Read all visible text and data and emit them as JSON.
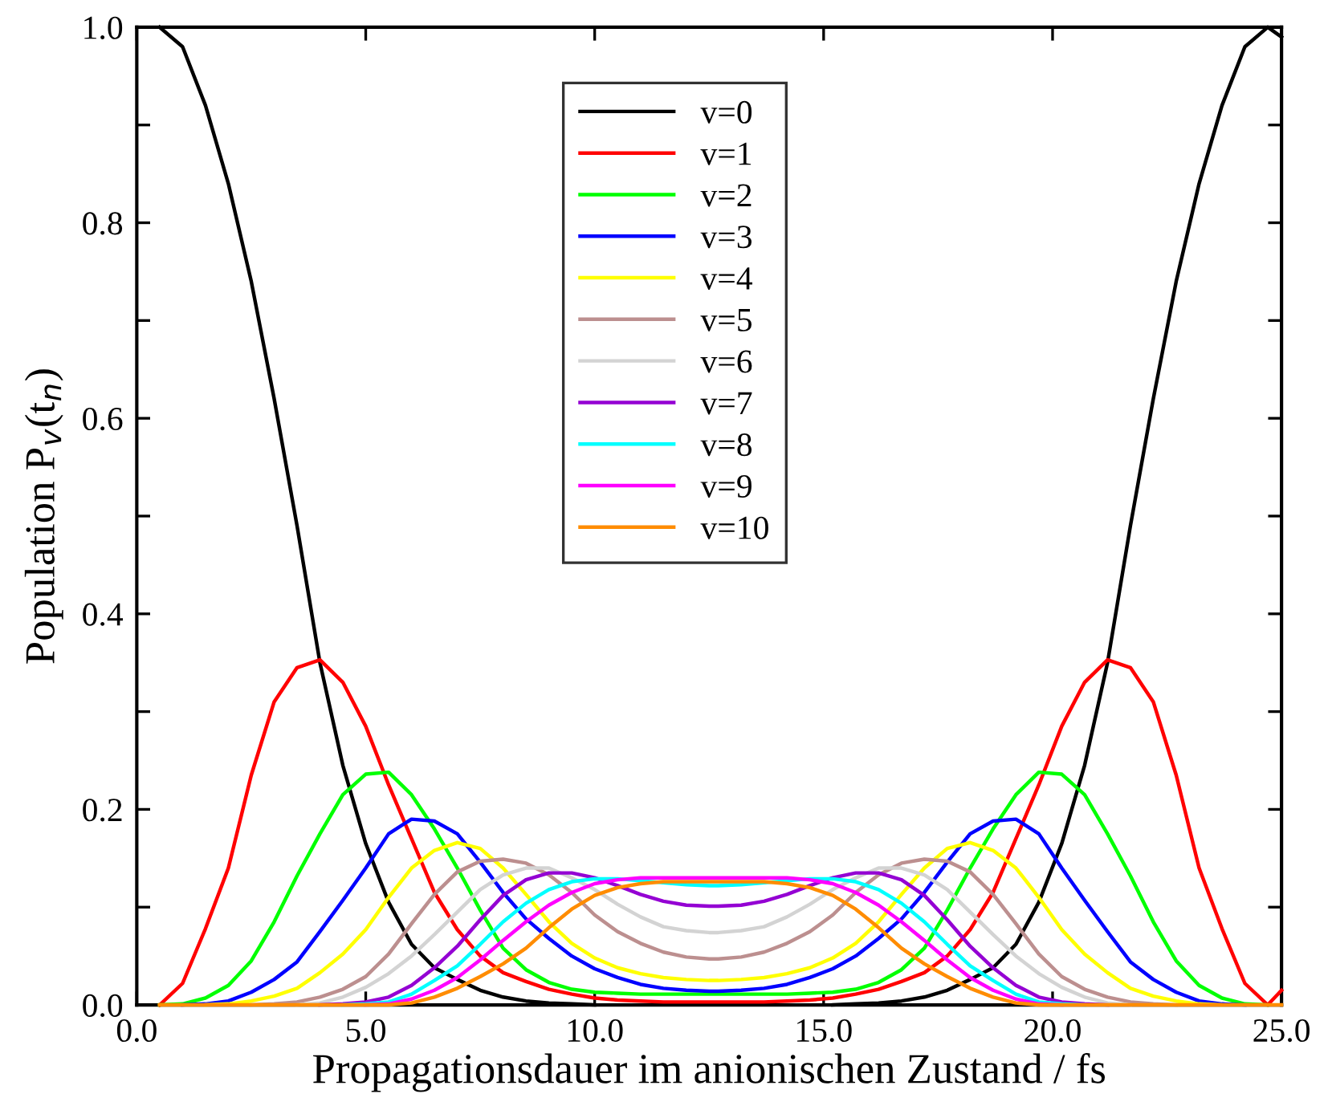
{
  "chart_data": {
    "type": "line",
    "xlabel": "Propagationsdauer im anionischen Zustand / fs",
    "ylabel": "Population P$_{v}$(t$_{n}$)",
    "x": [
      0.5,
      1.0,
      1.5,
      2.0,
      2.5,
      3.0,
      3.5,
      4.0,
      4.5,
      5.0,
      5.5,
      6.0,
      6.5,
      7.0,
      7.5,
      8.0,
      8.5,
      9.0,
      9.5,
      10.0,
      10.5,
      11.0,
      11.5,
      12.0,
      12.5,
      12.7,
      13.2,
      13.7,
      14.2,
      14.7,
      15.2,
      15.7,
      16.2,
      16.7,
      17.2,
      17.7,
      18.2,
      18.7,
      19.2,
      19.7,
      20.2,
      20.7,
      21.2,
      21.7,
      22.2,
      22.7,
      23.2,
      23.7,
      24.2,
      24.7,
      25.0
    ],
    "xlim": [
      0,
      25.0
    ],
    "xticks": [
      {
        "value": 0,
        "label": "0.0"
      },
      {
        "value": 5,
        "label": "5.0"
      },
      {
        "value": 10,
        "label": "10.0"
      },
      {
        "value": 15,
        "label": "15.0"
      },
      {
        "value": 20,
        "label": "20.0"
      },
      {
        "value": 25,
        "label": "25.0"
      }
    ],
    "ylim": [
      0,
      1.0
    ],
    "yticks": [
      {
        "value": 0,
        "label": "0.0"
      },
      {
        "value": 0.1,
        "label": null
      },
      {
        "value": 0.2,
        "label": "0.2"
      },
      {
        "value": 0.3,
        "label": null
      },
      {
        "value": 0.4,
        "label": "0.4"
      },
      {
        "value": 0.5,
        "label": null
      },
      {
        "value": 0.6,
        "label": "0.6"
      },
      {
        "value": 0.7,
        "label": null
      },
      {
        "value": 0.8,
        "label": "0.8"
      },
      {
        "value": 0.9,
        "label": null
      },
      {
        "value": 1.0,
        "label": "1.0"
      }
    ],
    "legend": "top",
    "grid": false,
    "marker": "none",
    "line_style": "solid",
    "series": [
      {
        "name": "v=0",
        "color": "#000000",
        "values": [
          1.0,
          0.98,
          0.92,
          0.84,
          0.74,
          0.62,
          0.49,
          0.35,
          0.245,
          0.165,
          0.105,
          0.062,
          0.038,
          0.026,
          0.015,
          0.008,
          0.004,
          0.002,
          0.001,
          0,
          null,
          null,
          null,
          null,
          null,
          null,
          null,
          null,
          null,
          null,
          0,
          0.001,
          0.002,
          0.004,
          0.008,
          0.015,
          0.026,
          0.038,
          0.062,
          0.105,
          0.165,
          0.245,
          0.35,
          0.49,
          0.62,
          0.74,
          0.84,
          0.92,
          0.98,
          1.0,
          0.99
        ]
      },
      {
        "name": "v=1",
        "color": "#ff0000",
        "values": [
          0,
          0.022,
          0.078,
          0.14,
          0.235,
          0.31,
          0.345,
          0.353,
          0.33,
          0.285,
          0.225,
          0.17,
          0.115,
          0.077,
          0.05,
          0.033,
          0.024,
          0.016,
          0.011,
          0.007,
          0.005,
          0.004,
          0.003,
          0.003,
          0.003,
          0.003,
          0.003,
          0.003,
          0.004,
          0.005,
          0.007,
          0.011,
          0.016,
          0.024,
          0.033,
          0.05,
          0.077,
          0.115,
          0.17,
          0.225,
          0.285,
          0.33,
          0.353,
          0.345,
          0.31,
          0.235,
          0.14,
          0.078,
          0.022,
          0,
          0.015
        ]
      },
      {
        "name": "v=2",
        "color": "#00ff00",
        "values": [
          0,
          0.001,
          0.007,
          0.02,
          0.045,
          0.085,
          0.132,
          0.175,
          0.215,
          0.236,
          0.238,
          0.215,
          0.18,
          0.14,
          0.097,
          0.058,
          0.036,
          0.023,
          0.016,
          0.013,
          0.012,
          0.011,
          0.011,
          0.011,
          0.011,
          0.011,
          0.011,
          0.011,
          0.011,
          0.012,
          0.013,
          0.016,
          0.023,
          0.036,
          0.058,
          0.097,
          0.14,
          0.18,
          0.215,
          0.238,
          0.236,
          0.215,
          0.175,
          0.132,
          0.085,
          0.045,
          0.02,
          0.007,
          0.001,
          0,
          null
        ]
      },
      {
        "name": "v=3",
        "color": "#0000ff",
        "values": [
          null,
          0,
          0.001,
          0.004,
          0.013,
          0.026,
          0.044,
          0.075,
          0.107,
          0.14,
          0.175,
          0.19,
          0.188,
          0.175,
          0.146,
          0.115,
          0.088,
          0.068,
          0.05,
          0.037,
          0.028,
          0.021,
          0.017,
          0.015,
          0.014,
          0.014,
          0.015,
          0.017,
          0.021,
          0.028,
          0.037,
          0.05,
          0.068,
          0.088,
          0.115,
          0.146,
          0.175,
          0.188,
          0.19,
          0.175,
          0.14,
          0.107,
          0.075,
          0.044,
          0.026,
          0.013,
          0.004,
          0.001,
          0,
          null,
          null
        ]
      },
      {
        "name": "v=4",
        "color": "#ffff00",
        "values": [
          null,
          null,
          0,
          0.001,
          0.004,
          0.009,
          0.017,
          0.033,
          0.052,
          0.077,
          0.11,
          0.14,
          0.158,
          0.166,
          0.16,
          0.14,
          0.113,
          0.085,
          0.063,
          0.048,
          0.038,
          0.032,
          0.028,
          0.026,
          0.025,
          0.025,
          0.026,
          0.028,
          0.032,
          0.038,
          0.048,
          0.063,
          0.085,
          0.113,
          0.14,
          0.16,
          0.166,
          0.158,
          0.14,
          0.11,
          0.077,
          0.052,
          0.033,
          0.017,
          0.009,
          0.004,
          0.001,
          0,
          null,
          null,
          null
        ]
      },
      {
        "name": "v=5",
        "color": "#bc8f8f",
        "values": [
          null,
          null,
          null,
          null,
          0,
          0.001,
          0.003,
          0.008,
          0.016,
          0.029,
          0.052,
          0.083,
          0.113,
          0.136,
          0.147,
          0.149,
          0.145,
          0.133,
          0.115,
          0.092,
          0.075,
          0.063,
          0.054,
          0.049,
          0.047,
          0.047,
          0.049,
          0.054,
          0.063,
          0.075,
          0.092,
          0.115,
          0.133,
          0.145,
          0.149,
          0.147,
          0.136,
          0.113,
          0.083,
          0.052,
          0.029,
          0.016,
          0.008,
          0.003,
          0.001,
          0,
          null,
          null,
          null,
          null,
          null
        ]
      },
      {
        "name": "v=6",
        "color": "#d3d3d3",
        "values": [
          null,
          null,
          null,
          null,
          null,
          null,
          0,
          0.002,
          0.008,
          0.018,
          0.032,
          0.05,
          0.072,
          0.095,
          0.118,
          0.133,
          0.14,
          0.14,
          0.13,
          0.118,
          0.103,
          0.09,
          0.08,
          0.076,
          0.074,
          0.074,
          0.076,
          0.08,
          0.09,
          0.103,
          0.118,
          0.13,
          0.14,
          0.14,
          0.133,
          0.118,
          0.095,
          0.072,
          0.05,
          0.032,
          0.018,
          0.008,
          0.002,
          0,
          null,
          null,
          null,
          null,
          null,
          null,
          null
        ]
      },
      {
        "name": "v=7",
        "color": "#9400d3",
        "values": [
          null,
          null,
          null,
          null,
          null,
          null,
          null,
          0,
          0.001,
          0.003,
          0.008,
          0.02,
          0.038,
          0.06,
          0.087,
          0.112,
          0.128,
          0.135,
          0.135,
          0.13,
          0.122,
          0.113,
          0.106,
          0.102,
          0.101,
          0.101,
          0.102,
          0.106,
          0.113,
          0.122,
          0.13,
          0.135,
          0.135,
          0.128,
          0.112,
          0.087,
          0.06,
          0.038,
          0.02,
          0.008,
          0.003,
          0.001,
          0,
          null,
          null,
          null,
          null,
          null,
          null,
          null,
          null
        ]
      },
      {
        "name": "v=8",
        "color": "#00ffff",
        "values": [
          null,
          null,
          null,
          null,
          null,
          null,
          null,
          null,
          0,
          0.001,
          0.003,
          0.011,
          0.025,
          0.04,
          0.062,
          0.085,
          0.104,
          0.118,
          0.126,
          0.129,
          0.129,
          0.127,
          0.125,
          0.123,
          0.122,
          0.122,
          0.123,
          0.125,
          0.127,
          0.129,
          0.129,
          0.126,
          0.118,
          0.104,
          0.085,
          0.062,
          0.04,
          0.025,
          0.011,
          0.003,
          0.001,
          0,
          null,
          null,
          null,
          null,
          null,
          null,
          null,
          null,
          null
        ]
      },
      {
        "name": "v=9",
        "color": "#ff00ff",
        "values": [
          null,
          null,
          null,
          null,
          null,
          null,
          null,
          null,
          null,
          0,
          0.001,
          0.006,
          0.015,
          0.028,
          0.046,
          0.066,
          0.085,
          0.102,
          0.115,
          0.124,
          0.128,
          0.13,
          0.13,
          0.13,
          0.13,
          0.13,
          0.13,
          0.13,
          0.13,
          0.128,
          0.124,
          0.115,
          0.102,
          0.085,
          0.066,
          0.046,
          0.028,
          0.015,
          0.006,
          0.001,
          0,
          null,
          null,
          null,
          null,
          null,
          null,
          null,
          null,
          null,
          null
        ]
      },
      {
        "name": "v=10",
        "color": "#ff8c00",
        "values": [
          0,
          0,
          0,
          0,
          0,
          0,
          0,
          0,
          0,
          0,
          0,
          0.002,
          0.008,
          0.017,
          0.029,
          0.042,
          0.058,
          0.079,
          0.098,
          0.112,
          0.12,
          0.124,
          0.126,
          0.126,
          0.126,
          0.126,
          0.126,
          0.126,
          0.124,
          0.12,
          0.112,
          0.098,
          0.079,
          0.058,
          0.042,
          0.029,
          0.017,
          0.008,
          0.002,
          0,
          0,
          0,
          0,
          0,
          0,
          0,
          0,
          0,
          0,
          0,
          0
        ]
      }
    ]
  }
}
